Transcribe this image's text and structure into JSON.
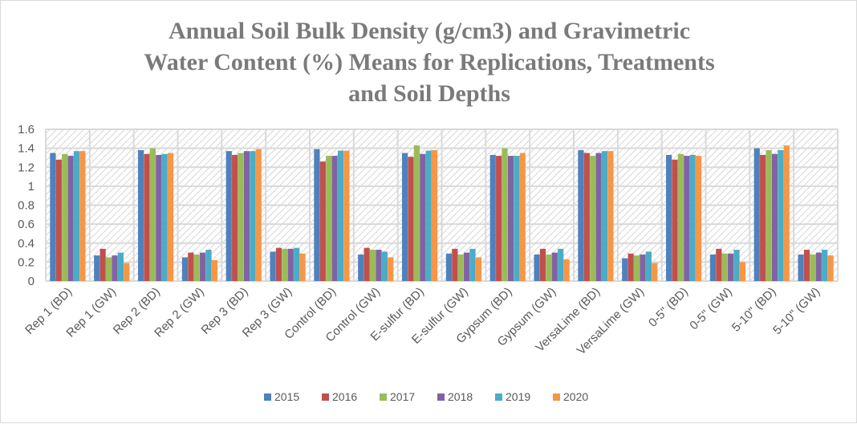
{
  "chart_data": {
    "type": "bar",
    "title": "Annual Soil Bulk Density (g/cm3) and Gravimetric Water Content (%) Means for Replications, Treatments and Soil Depths",
    "title_lines": [
      "Annual Soil Bulk Density (g/cm3) and Gravimetric",
      "Water Content (%) Means for Replications, Treatments",
      "and Soil Depths"
    ],
    "xlabel": "",
    "ylabel": "",
    "ylim": [
      0,
      1.6
    ],
    "yticks": [
      "0",
      "0.2",
      "0.4",
      "0.6",
      "0.8",
      "1",
      "1.2",
      "1.4",
      "1.6"
    ],
    "grid": true,
    "legend": "bottom",
    "categories": [
      "Rep 1 (BD)",
      "Rep 1 (GW)",
      "Rep 2 (BD)",
      "Rep 2 (GW)",
      "Rep 3 (BD)",
      "Rep 3 (GW)",
      "Control (BD)",
      "Control (GW)",
      "E-sulfur (BD)",
      "E-sulfur (GW)",
      "Gypsum (BD)",
      "Gypsum (GW)",
      "VersaLime (BD)",
      "VersaLime (GW)",
      "0-5\" (BD)",
      "0-5\" (GW)",
      "5-10\" (BD)",
      "5-10\" (GW)"
    ],
    "series": [
      {
        "name": "2015",
        "color": "#4f81bd",
        "values": [
          1.35,
          0.27,
          1.38,
          0.25,
          1.37,
          0.31,
          1.39,
          0.28,
          1.35,
          0.29,
          1.33,
          0.28,
          1.38,
          0.24,
          1.33,
          0.28,
          1.4,
          0.28
        ]
      },
      {
        "name": "2016",
        "color": "#c0504d",
        "values": [
          1.28,
          0.34,
          1.34,
          0.3,
          1.33,
          0.35,
          1.26,
          0.35,
          1.31,
          0.34,
          1.32,
          0.34,
          1.35,
          0.29,
          1.28,
          0.34,
          1.33,
          0.33
        ]
      },
      {
        "name": "2017",
        "color": "#9bbb59",
        "values": [
          1.34,
          0.25,
          1.4,
          0.28,
          1.35,
          0.34,
          1.32,
          0.33,
          1.43,
          0.28,
          1.4,
          0.28,
          1.32,
          0.27,
          1.34,
          0.29,
          1.38,
          0.28
        ]
      },
      {
        "name": "2018",
        "color": "#8064a2",
        "values": [
          1.32,
          0.27,
          1.33,
          0.3,
          1.37,
          0.34,
          1.32,
          0.33,
          1.34,
          0.3,
          1.32,
          0.3,
          1.35,
          0.28,
          1.32,
          0.29,
          1.34,
          0.3
        ]
      },
      {
        "name": "2019",
        "color": "#4bacc6",
        "values": [
          1.37,
          0.3,
          1.34,
          0.33,
          1.37,
          0.35,
          1.375,
          0.31,
          1.375,
          0.34,
          1.32,
          0.34,
          1.37,
          0.31,
          1.33,
          0.33,
          1.38,
          0.33
        ]
      },
      {
        "name": "2020",
        "color": "#f79646",
        "values": [
          1.37,
          0.19,
          1.35,
          0.22,
          1.39,
          0.29,
          1.375,
          0.25,
          1.38,
          0.25,
          1.35,
          0.23,
          1.37,
          0.19,
          1.32,
          0.2,
          1.43,
          0.27
        ]
      }
    ]
  }
}
